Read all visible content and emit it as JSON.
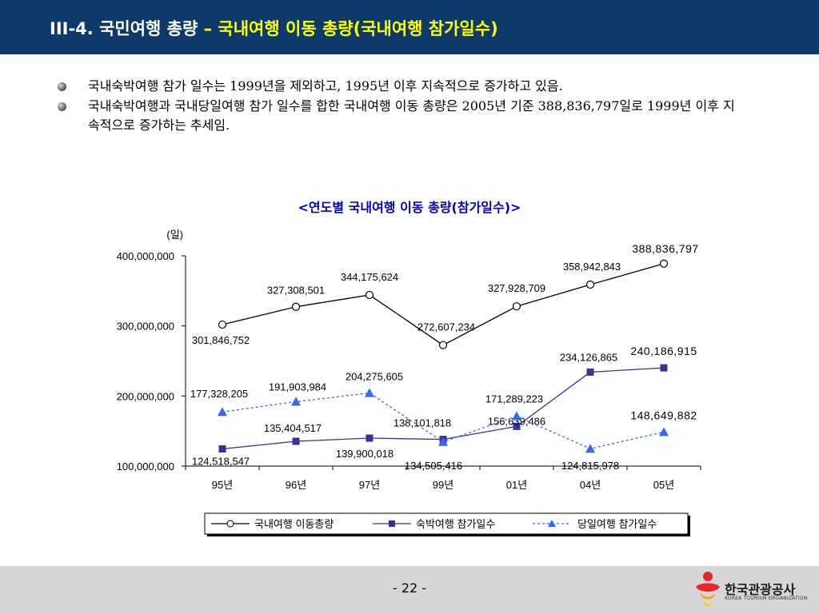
{
  "header": {
    "prefix": "III-4.",
    "title": "국민여행 총량",
    "dash": "–",
    "subtitle": "국내여행 이동 총량(국내여행 참가일수)"
  },
  "bullets": [
    "국내숙박여행 참가 일수는 1999년을 제외하고, 1995년 이후 지속적으로 증가하고 있음.",
    "국내숙박여행과 국내당일여행 참가 일수를 합한 국내여행 이동 총량은 2005년 기준 388,836,797일로 1999년 이후 지속적으로 증가하는 추세임."
  ],
  "chart_title": "<연도별 국내여행 이동 총량(참가일수)>",
  "chart_data": {
    "type": "line",
    "categories": [
      "95년",
      "96년",
      "97년",
      "99년",
      "01년",
      "04년",
      "05년"
    ],
    "ylabel": "(일)",
    "ylim": [
      100000000,
      400000000
    ],
    "yticks": [
      100000000,
      200000000,
      300000000,
      400000000
    ],
    "ytick_labels": [
      "100,000,000",
      "200,000,000",
      "300,000,000",
      "400,000,000"
    ],
    "legend_position": "bottom",
    "series": [
      {
        "name": "국내여행 이동총량",
        "marker": "circle",
        "line": "solid",
        "color": "#000000",
        "values": [
          301846752,
          327308501,
          344175624,
          272607234,
          327928709,
          358942843,
          388836797
        ],
        "labels": [
          "301,846,752",
          "327,308,501",
          "344,175,624",
          "272,607,234",
          "327,928,709",
          "358,942,843",
          "388,836,797"
        ]
      },
      {
        "name": "숙박여행 참가일수",
        "marker": "square",
        "line": "solid",
        "color": "#333399",
        "values": [
          124518547,
          135404517,
          139900018,
          138101818,
          156639486,
          234126865,
          240186915
        ],
        "labels": [
          "124,518,547",
          "135,404,517",
          "139,900,018",
          "138,101,818",
          "156,639,486",
          "234,126,865",
          "240,186,915"
        ]
      },
      {
        "name": "당일여행 참가일수",
        "marker": "triangle",
        "line": "dotted",
        "color": "#3366ff",
        "values": [
          177328205,
          191903984,
          204275605,
          134505416,
          171289223,
          124815978,
          148649882
        ],
        "labels": [
          "177,328,205",
          "191,903,984",
          "204,275,605",
          "134,505,416",
          "171,289,223",
          "124,815,978",
          "148,649,882"
        ]
      }
    ]
  },
  "footer": {
    "page_number": "- 22 -",
    "logo_text": "한국관광공사",
    "logo_subtext": "KOREA TOURISM ORGANIZATION"
  }
}
